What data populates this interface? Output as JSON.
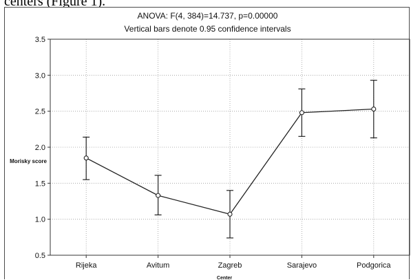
{
  "page_text": {
    "caption_fragment": "centers (Figure 1)."
  },
  "chart_data": {
    "type": "line",
    "title": "ANOVA: F(4, 384)=14.737, p=0.00000",
    "subtitle": "Vertical bars denote 0.95 confidence intervals",
    "xlabel": "Center",
    "ylabel": "Morisky score",
    "categories": [
      "Rijeka",
      "Avitum",
      "Zagreb",
      "Sarajevo",
      "Podgorica"
    ],
    "series": [
      {
        "values": [
          1.85,
          1.33,
          1.07,
          2.48,
          2.53
        ],
        "ci_low": [
          1.55,
          1.06,
          0.74,
          2.15,
          2.13
        ],
        "ci_high": [
          2.14,
          1.61,
          1.4,
          2.81,
          2.93
        ]
      }
    ],
    "ylim": [
      0.5,
      3.5
    ],
    "yticks": [
      "0.5",
      "1.0",
      "1.5",
      "2.0",
      "2.5",
      "3.0",
      "3.5"
    ],
    "grid": true,
    "grid_style": "dotted"
  }
}
